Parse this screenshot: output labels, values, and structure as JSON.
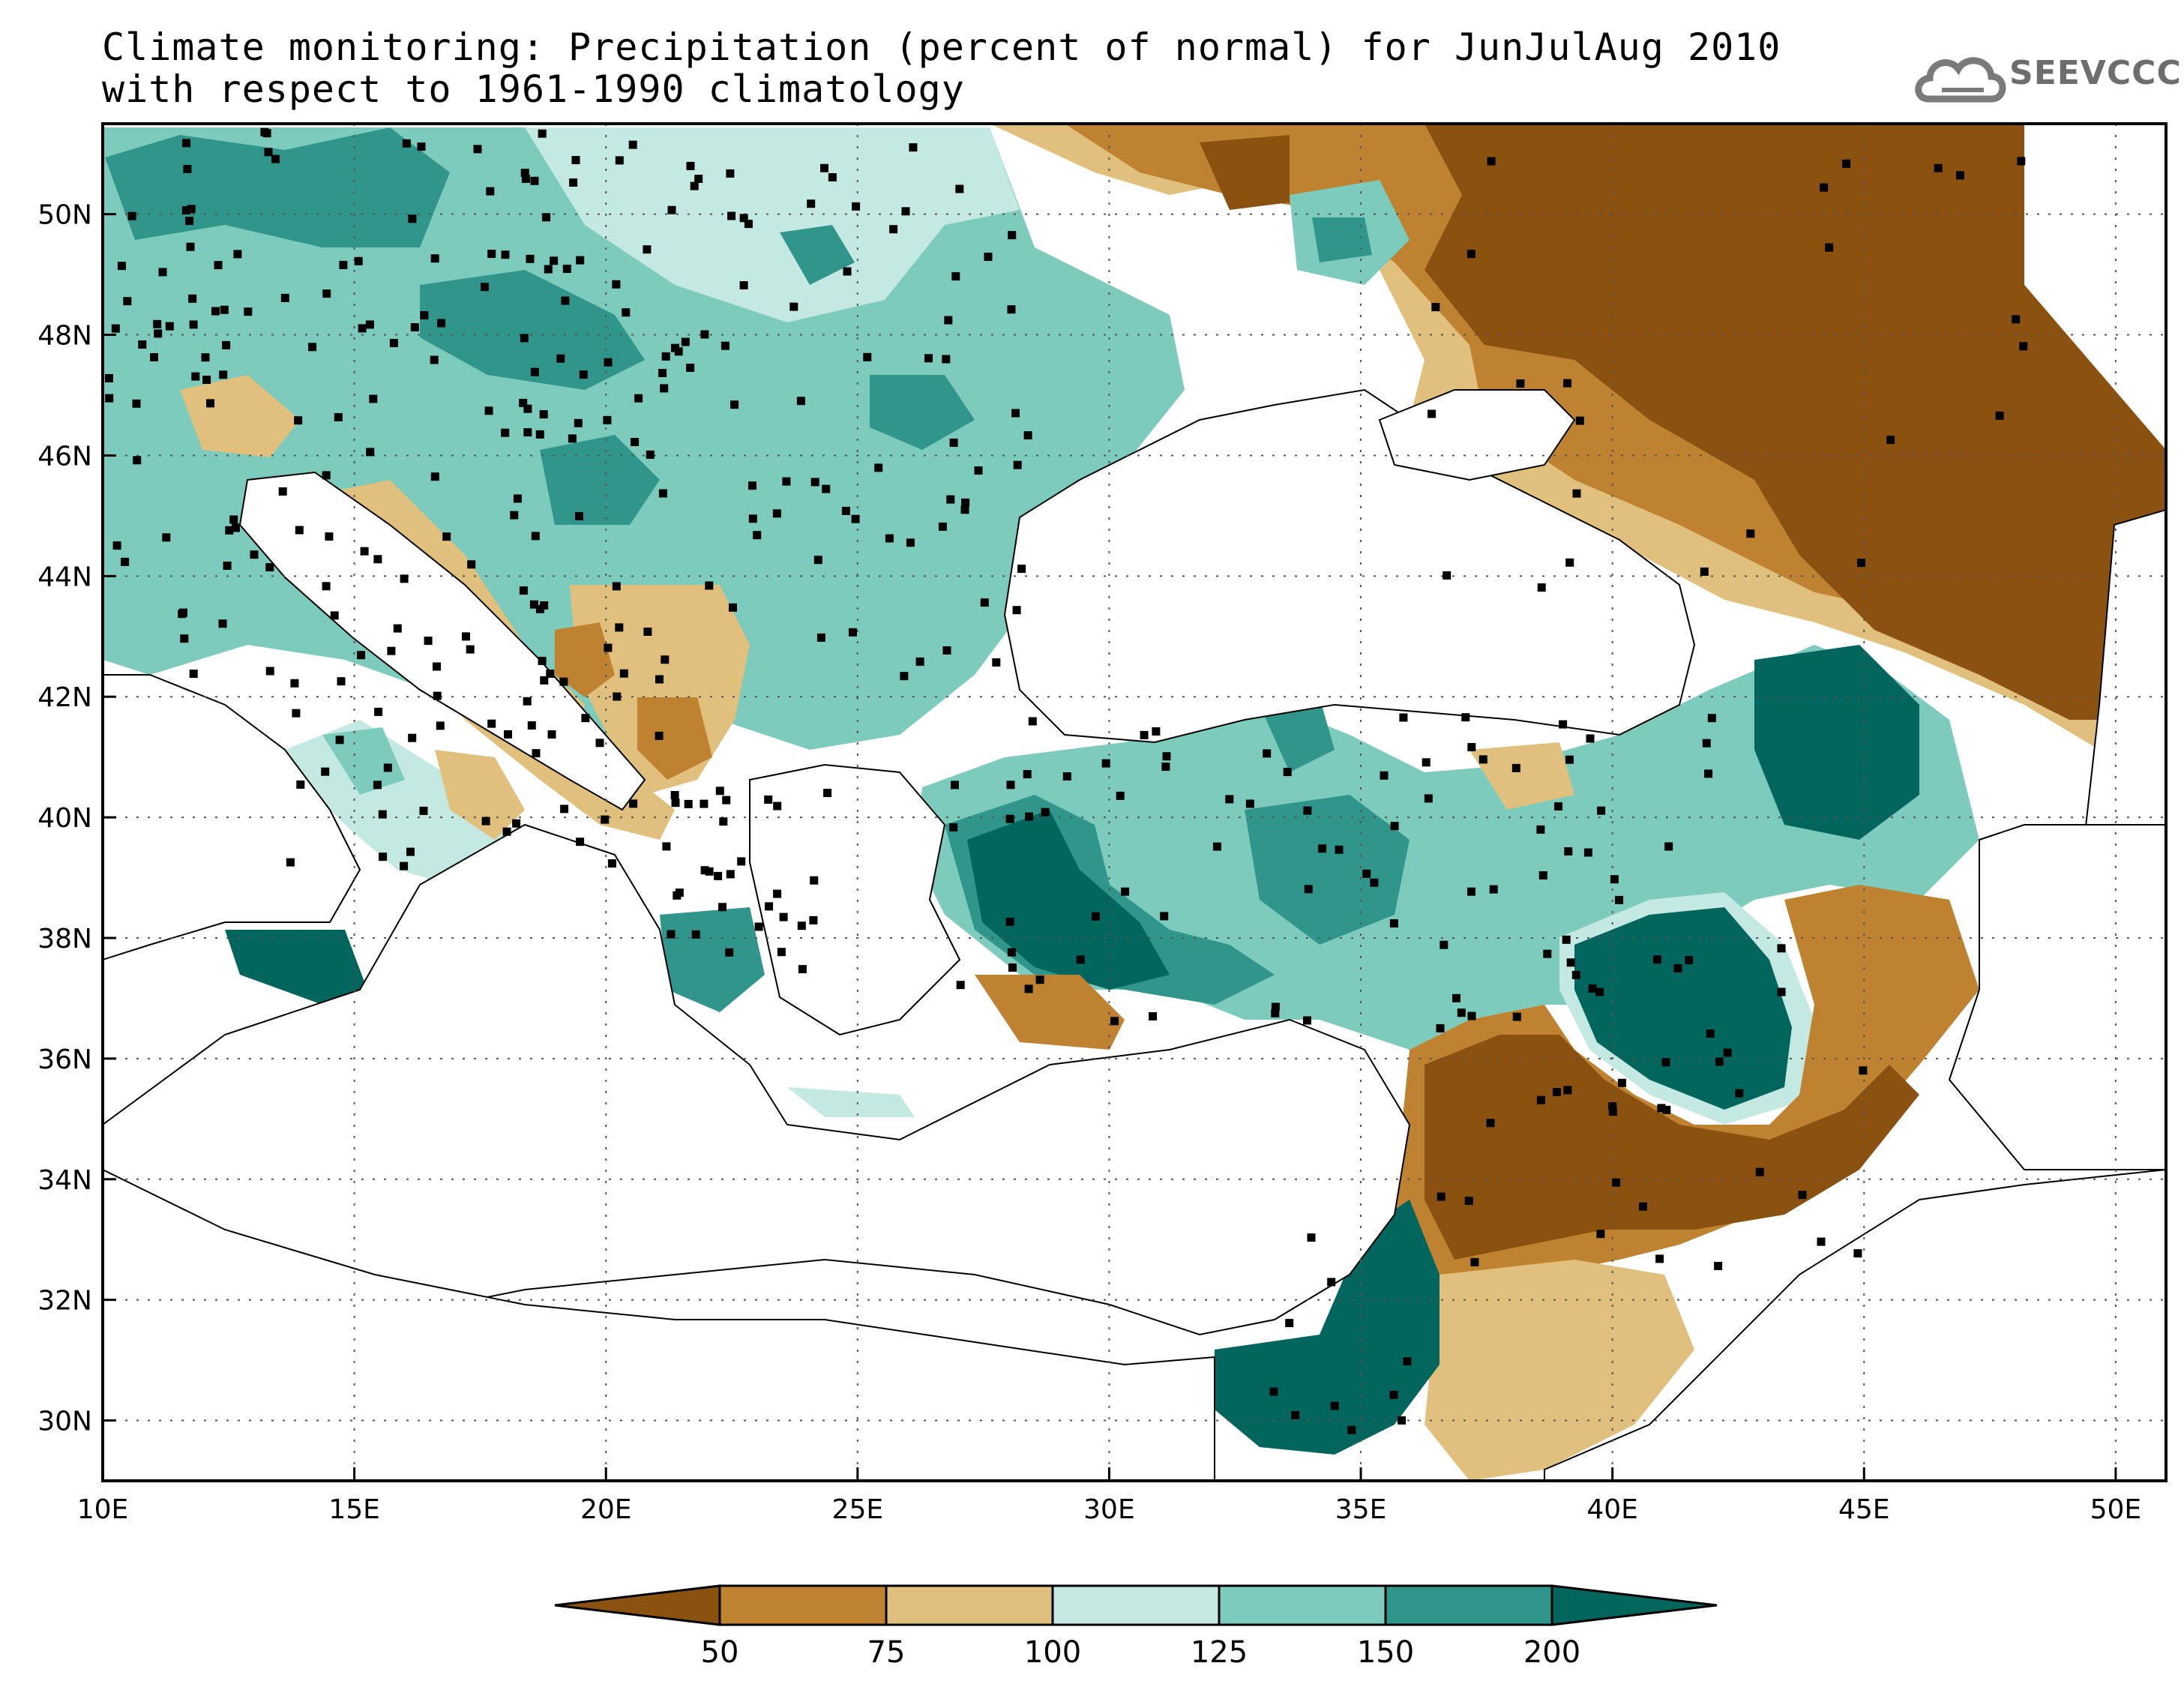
{
  "title": {
    "line1": "Climate monitoring: Precipitation (percent of normal) for JunJulAug 2010",
    "line2": "with respect to 1961-1990 climatology"
  },
  "logo": {
    "text": "SEEVCCC",
    "icon": "cloud-icon"
  },
  "map": {
    "lon_range": [
      10,
      51
    ],
    "lat_range": [
      29,
      51.5
    ],
    "x_ticks": [
      "10E",
      "15E",
      "20E",
      "25E",
      "30E",
      "35E",
      "40E",
      "45E",
      "50E"
    ],
    "y_ticks": [
      "30N",
      "32N",
      "34N",
      "36N",
      "38N",
      "40N",
      "42N",
      "44N",
      "46N",
      "48N",
      "50N"
    ]
  },
  "legend": {
    "thresholds": [
      "50",
      "75",
      "100",
      "125",
      "150",
      "200"
    ],
    "colors": [
      "#8a5110",
      "#bf8230",
      "#e0c07c",
      "#c4e9e2",
      "#7ccbbd",
      "#30968c",
      "#03665e"
    ]
  },
  "colors": {
    "very_dry": "#8a5110",
    "dry": "#bf8230",
    "slightly_dry": "#e0c07c",
    "slightly_wet": "#c4e9e2",
    "wet": "#7ccbbd",
    "very_wet": "#30968c",
    "extremely_wet": "#03665e"
  }
}
